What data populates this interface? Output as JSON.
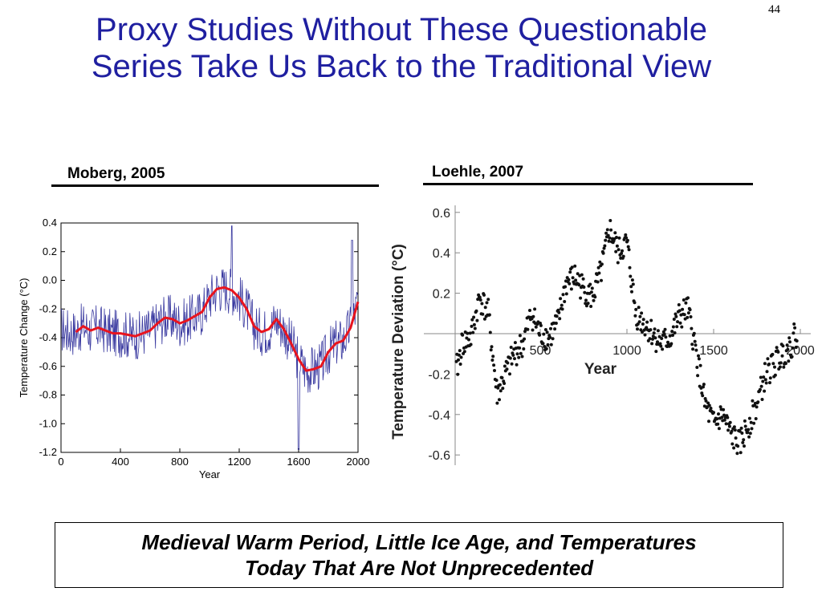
{
  "slide": {
    "number": "44",
    "title_line1": "Proxy Studies Without These Questionable",
    "title_line2": "Series Take Us Back to the Traditional View",
    "footer_line1": "Medieval Warm Period, Little Ice Age, and Temperatures",
    "footer_line2": "Today That Are Not Unprecedented"
  },
  "colors": {
    "title": "#1f1fa0",
    "moberg_annual": "#3a3aa0",
    "moberg_smooth": "#e8141e",
    "loehle_points": "#111111"
  },
  "chart_data": [
    {
      "type": "line",
      "caption": "Moberg, 2005",
      "xlabel": "Year",
      "ylabel": "Temperature Change (°C)",
      "xlim": [
        0,
        2000
      ],
      "ylim": [
        -1.2,
        0.4
      ],
      "xticks": [
        "0",
        "400",
        "800",
        "1200",
        "1600",
        "2000"
      ],
      "yticks": [
        "0.4",
        "0.2",
        "0.0",
        "-0.2",
        "-0.4",
        "-0.6",
        "-0.8",
        "-1.0",
        "-1.2"
      ],
      "series": [
        {
          "x": [
            0,
            50,
            100,
            150,
            200,
            250,
            300,
            350,
            400,
            450,
            500,
            550,
            600,
            650,
            700,
            750,
            800,
            850,
            900,
            950,
            1000,
            1050,
            1100,
            1150,
            1200,
            1250,
            1300,
            1350,
            1400,
            1450,
            1500,
            1550,
            1600,
            1650,
            1700,
            1750,
            1800,
            1850,
            1900,
            1950,
            2000
          ],
          "y": [
            -0.34,
            -0.36,
            -0.36,
            -0.32,
            -0.35,
            -0.33,
            -0.35,
            -0.37,
            -0.37,
            -0.38,
            -0.39,
            -0.37,
            -0.35,
            -0.3,
            -0.26,
            -0.27,
            -0.3,
            -0.28,
            -0.25,
            -0.22,
            -0.12,
            -0.06,
            -0.05,
            -0.07,
            -0.12,
            -0.2,
            -0.32,
            -0.36,
            -0.34,
            -0.27,
            -0.34,
            -0.44,
            -0.55,
            -0.63,
            -0.62,
            -0.6,
            -0.5,
            -0.44,
            -0.42,
            -0.33,
            -0.15
          ]
        }
      ]
    },
    {
      "type": "scatter",
      "caption": "Loehle, 2007",
      "xlabel": "Year",
      "ylabel": "Temperature Deviation (°C)",
      "xlim": [
        0,
        2000
      ],
      "ylim": [
        -0.6,
        0.6
      ],
      "xticks": [
        "500",
        "1000",
        "1500",
        "2000"
      ],
      "yticks": [
        "0.6",
        "0.4",
        "0.2",
        "-0.2",
        "-0.4",
        "-0.6"
      ],
      "series": [
        {
          "x": [
            0,
            50,
            100,
            150,
            200,
            250,
            300,
            350,
            400,
            450,
            500,
            550,
            600,
            650,
            700,
            750,
            800,
            850,
            900,
            950,
            1000,
            1050,
            1100,
            1150,
            1200,
            1250,
            1300,
            1350,
            1400,
            1450,
            1500,
            1550,
            1600,
            1650,
            1700,
            1750,
            1800,
            1850,
            1900,
            1950,
            2000
          ],
          "y": [
            -0.25,
            -0.05,
            -0.02,
            0.18,
            0.1,
            -0.3,
            -0.2,
            -0.1,
            -0.05,
            0.1,
            0.0,
            -0.02,
            0.05,
            0.25,
            0.28,
            0.22,
            0.18,
            0.3,
            0.52,
            0.4,
            0.45,
            0.1,
            0.05,
            0.0,
            -0.05,
            -0.02,
            0.08,
            0.12,
            -0.1,
            -0.35,
            -0.45,
            -0.4,
            -0.5,
            -0.55,
            -0.45,
            -0.35,
            -0.2,
            -0.15,
            -0.1,
            -0.05,
            0.05
          ]
        }
      ]
    }
  ]
}
